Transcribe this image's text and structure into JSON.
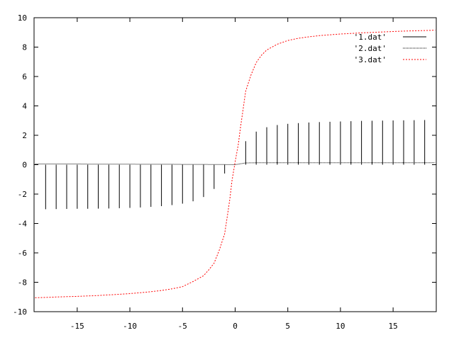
{
  "chart_data": {
    "type": "line",
    "title": "",
    "xlabel": "",
    "ylabel": "",
    "xlim": [
      -19.1,
      19.1
    ],
    "ylim": [
      -10,
      10
    ],
    "grid": false,
    "legend_position": "top-right",
    "x_ticks": [
      -15,
      -10,
      -5,
      0,
      5,
      10,
      15
    ],
    "y_ticks": [
      -10,
      -8,
      -6,
      -4,
      -2,
      0,
      2,
      4,
      6,
      8,
      10
    ],
    "x_tick_labels": [
      "-15",
      "-10",
      "-5",
      "0",
      "5",
      "10",
      "15"
    ],
    "y_tick_labels": [
      "-10",
      "-8",
      "-6",
      "-4",
      "-2",
      "0",
      "2",
      "4",
      "6",
      "8",
      "10"
    ],
    "series": [
      {
        "name": "'1.dat'",
        "style": "impulses",
        "color": "#000000",
        "x": [
          -18,
          -17,
          -16,
          -15,
          -14,
          -13,
          -12,
          -11,
          -10,
          -9,
          -8,
          -7,
          -6,
          -5,
          -4,
          -3,
          -2,
          -1,
          0,
          1,
          2,
          3,
          4,
          5,
          6,
          7,
          8,
          9,
          10,
          11,
          12,
          13,
          14,
          15,
          16,
          17,
          18
        ],
        "y": [
          -3.03,
          -3.02,
          -3.01,
          -3.0,
          -3.0,
          -2.99,
          -2.98,
          -2.96,
          -2.94,
          -2.91,
          -2.87,
          -2.82,
          -2.75,
          -2.65,
          -2.49,
          -2.2,
          -1.65,
          -0.6,
          0,
          1.6,
          2.25,
          2.55,
          2.7,
          2.78,
          2.83,
          2.87,
          2.9,
          2.92,
          2.94,
          2.96,
          2.98,
          2.99,
          3.0,
          3.01,
          3.02,
          3.03,
          3.04
        ]
      },
      {
        "name": "'2.dat'",
        "style": "dots",
        "color": "#000000",
        "x": [
          -19,
          -18,
          -17,
          -16,
          -15,
          -14,
          -13,
          -12,
          -11,
          -10,
          -9,
          -8,
          -7,
          -6,
          -5,
          -4,
          -3,
          -2,
          -1,
          0,
          1,
          2,
          3,
          4,
          5,
          6,
          7,
          8,
          9,
          10,
          11,
          12,
          13,
          14,
          15,
          16,
          17,
          18,
          19
        ],
        "y": [
          0.05,
          0.05,
          0.05,
          0.05,
          0.05,
          0.04,
          0.04,
          0.04,
          0.04,
          0.04,
          0.03,
          0.03,
          0.03,
          0.03,
          0.02,
          0.02,
          0.02,
          0.01,
          0.01,
          0.0,
          0.12,
          0.13,
          0.13,
          0.13,
          0.13,
          0.13,
          0.13,
          0.13,
          0.13,
          0.13,
          0.13,
          0.13,
          0.13,
          0.13,
          0.13,
          0.13,
          0.13,
          0.13,
          0.13
        ]
      },
      {
        "name": "'3.dat'",
        "style": "dashed",
        "color": "#ff0000",
        "x": [
          -19,
          -18,
          -17,
          -16,
          -15,
          -14,
          -13,
          -12,
          -11,
          -10,
          -9,
          -8,
          -7,
          -6,
          -5,
          -4,
          -3,
          -2.5,
          -2,
          -1.5,
          -1,
          -0.7,
          -0.5,
          -0.3,
          0,
          0.3,
          0.5,
          0.7,
          1,
          1.5,
          2,
          2.5,
          3,
          4,
          5,
          6,
          7,
          8,
          9,
          10,
          11,
          12,
          13,
          14,
          15,
          16,
          17,
          18,
          19
        ],
        "y": [
          -9.05,
          -9.03,
          -9.0,
          -8.98,
          -8.96,
          -8.93,
          -8.9,
          -8.86,
          -8.82,
          -8.77,
          -8.71,
          -8.64,
          -8.56,
          -8.45,
          -8.3,
          -7.95,
          -7.55,
          -7.15,
          -6.7,
          -5.8,
          -4.7,
          -3.3,
          -2.3,
          -1.1,
          0.2,
          1.4,
          2.5,
          3.5,
          5.0,
          6.1,
          6.95,
          7.45,
          7.8,
          8.2,
          8.45,
          8.6,
          8.7,
          8.78,
          8.84,
          8.89,
          8.93,
          8.97,
          9.0,
          9.03,
          9.06,
          9.09,
          9.11,
          9.13,
          9.15
        ]
      }
    ]
  }
}
